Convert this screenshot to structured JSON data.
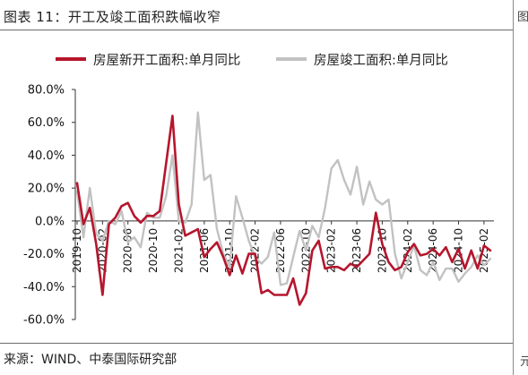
{
  "header": {
    "title": "图表 11：开工及竣工面积跌幅收窄",
    "right_glyph_top": "图",
    "right_glyph_bottom": "元"
  },
  "footer": {
    "source": "来源：WIND、中泰国际研究部"
  },
  "chart_data": {
    "type": "line",
    "title": "",
    "xlabel": "",
    "ylabel": "",
    "ylim": [
      -60,
      80
    ],
    "yticks": [
      -60,
      -40,
      -20,
      0,
      20,
      40,
      60,
      80
    ],
    "ytick_labels": [
      "-60.0%",
      "-40.0%",
      "-20.0%",
      "0.0%",
      "20.0%",
      "40.0%",
      "60.0%",
      "80.0%"
    ],
    "y_unit": "%",
    "grid": false,
    "legend_position": "top",
    "x": [
      "2019-10",
      "2019-11",
      "2019-12",
      "2020-01",
      "2020-02",
      "2020-03",
      "2020-04",
      "2020-05",
      "2020-06",
      "2020-07",
      "2020-08",
      "2020-09",
      "2020-10",
      "2020-11",
      "2020-12",
      "2021-01",
      "2021-02",
      "2021-03",
      "2021-04",
      "2021-05",
      "2021-06",
      "2021-07",
      "2021-08",
      "2021-09",
      "2021-10",
      "2021-11",
      "2021-12",
      "2022-01",
      "2022-02",
      "2022-03",
      "2022-04",
      "2022-05",
      "2022-06",
      "2022-07",
      "2022-08",
      "2022-09",
      "2022-10",
      "2022-11",
      "2022-12",
      "2023-01",
      "2023-02",
      "2023-03",
      "2023-04",
      "2023-05",
      "2023-06",
      "2023-07",
      "2023-08",
      "2023-09",
      "2023-10",
      "2023-11",
      "2023-12",
      "2024-01",
      "2024-02",
      "2024-03",
      "2024-04",
      "2024-05",
      "2024-06",
      "2024-07",
      "2024-08",
      "2024-09",
      "2024-10",
      "2024-11",
      "2024-12",
      "2025-01",
      "2025-02",
      "2025-03"
    ],
    "xtick_labels": [
      "2019-10",
      "2020-02",
      "2020-06",
      "2020-10",
      "2021-02",
      "2021-06",
      "2021-10",
      "2022-02",
      "2022-06",
      "2022-10",
      "2023-02",
      "2023-06",
      "2023-10",
      "2024-02",
      "2024-06",
      "2024-10",
      "2025-02"
    ],
    "series": [
      {
        "name": "房屋新开工面积:单月同比",
        "color": "#b5162d",
        "values": [
          23,
          -2,
          8,
          -14,
          -45,
          -2,
          2,
          9,
          11,
          3,
          -1,
          3,
          3,
          6,
          35,
          64,
          10,
          -9,
          -7,
          -5,
          -22,
          -17,
          -13,
          -22,
          -33,
          -21,
          -32,
          -20,
          -20,
          -44,
          -42,
          -45,
          -45,
          -45,
          -35,
          -51,
          -44,
          -18,
          -12,
          -29,
          -28,
          -28,
          -30,
          -26,
          -28,
          -24,
          -20,
          5,
          -14,
          -25,
          -30,
          -28,
          -19,
          -14,
          -21,
          -20,
          -17,
          -21,
          -16,
          -25,
          -17,
          -29,
          -18,
          -29,
          -15,
          -18
        ]
      },
      {
        "name": "房屋竣工面积:单月同比",
        "color": "#c2c2c2",
        "values": [
          18,
          -10,
          20,
          -8,
          -12,
          0,
          -2,
          6,
          -13,
          -10,
          -16,
          5,
          2,
          2,
          15,
          40,
          0,
          -1,
          10,
          66,
          25,
          28,
          -5,
          -20,
          -28,
          15,
          2,
          -12,
          -22,
          -26,
          -22,
          -7,
          -39,
          -38,
          -22,
          -6,
          -18,
          -3,
          -10,
          8,
          32,
          37,
          25,
          16,
          33,
          10,
          24,
          13,
          10,
          13,
          -20,
          -35,
          -25,
          -15,
          -30,
          -33,
          -25,
          -36,
          -29,
          -29,
          -37,
          -32,
          -28,
          -21,
          -27,
          -23
        ]
      }
    ]
  }
}
